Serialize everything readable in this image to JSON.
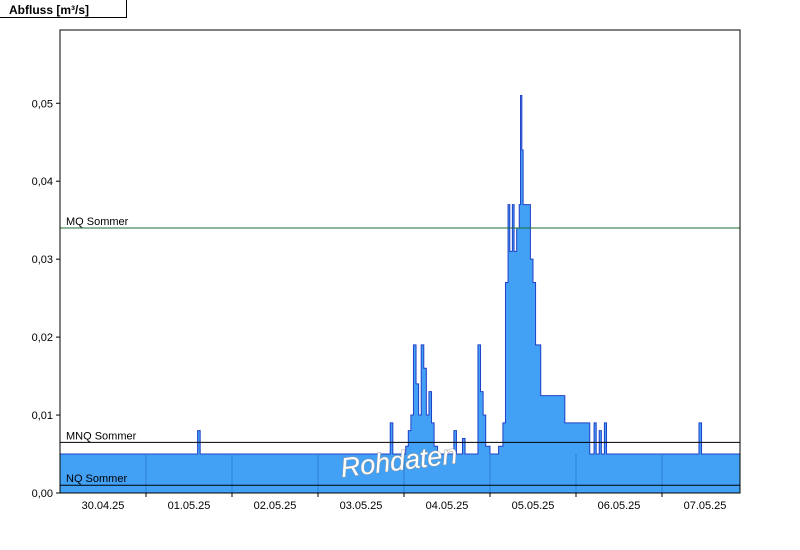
{
  "page": {
    "title": "Abfluss [m³/s]"
  },
  "chart_data": {
    "type": "area",
    "title": "Abfluss [m³/s]",
    "ylabel": "Abfluss [m³/s]",
    "xlabel": "",
    "unit": "m³/s",
    "watermark": "Rohdaten",
    "series_name": "Rohdaten",
    "ylim": [
      0,
      0.0594
    ],
    "xlim_days": [
      0,
      7.907
    ],
    "y_ticks": [
      0,
      0.01,
      0.02,
      0.03,
      0.04,
      0.05
    ],
    "y_tick_labels": [
      "0,00",
      "0,01",
      "0,02",
      "0,03",
      "0,04",
      "0,05"
    ],
    "x_tick_labels": [
      "30.04.25",
      "01.05.25",
      "02.05.25",
      "03.05.25",
      "04.05.25",
      "05.05.25",
      "06.05.25",
      "07.05.25"
    ],
    "x_day_boundaries": [
      1,
      2,
      3,
      4,
      5,
      6,
      7
    ],
    "grid": "day-ticks-only",
    "legend_position": "none",
    "reference_lines": [
      {
        "label": "MQ Sommer",
        "value": 0.034,
        "color": "#1b6e34"
      },
      {
        "label": "MNQ Sommer",
        "value": 0.0065,
        "color": "#000000"
      },
      {
        "label": "NQ Sommer",
        "value": 0.001,
        "color": "#000000"
      }
    ],
    "colors": {
      "area_fill": "#42a0f5",
      "area_stroke": "#2140c8",
      "day_line": "#2f7fd0",
      "axis": "#000000",
      "watermark_fill": "#ffffff",
      "watermark_outline": "#9a9a9a"
    },
    "series": [
      {
        "name": "Rohdaten",
        "step": true,
        "points": [
          [
            0.0,
            0.005
          ],
          [
            1.6,
            0.008
          ],
          [
            1.63,
            0.005
          ],
          [
            3.84,
            0.009
          ],
          [
            3.87,
            0.005
          ],
          [
            4.02,
            0.006
          ],
          [
            4.05,
            0.008
          ],
          [
            4.08,
            0.01
          ],
          [
            4.11,
            0.019
          ],
          [
            4.14,
            0.014
          ],
          [
            4.17,
            0.01
          ],
          [
            4.2,
            0.019
          ],
          [
            4.23,
            0.016
          ],
          [
            4.26,
            0.01
          ],
          [
            4.29,
            0.013
          ],
          [
            4.32,
            0.009
          ],
          [
            4.35,
            0.006
          ],
          [
            4.39,
            0.005
          ],
          [
            4.58,
            0.008
          ],
          [
            4.61,
            0.005
          ],
          [
            4.68,
            0.007
          ],
          [
            4.71,
            0.005
          ],
          [
            4.86,
            0.019
          ],
          [
            4.89,
            0.013
          ],
          [
            4.92,
            0.01
          ],
          [
            4.95,
            0.006
          ],
          [
            5.0,
            0.005
          ],
          [
            5.1,
            0.006
          ],
          [
            5.15,
            0.009
          ],
          [
            5.18,
            0.027
          ],
          [
            5.21,
            0.037
          ],
          [
            5.23,
            0.031
          ],
          [
            5.26,
            0.037
          ],
          [
            5.28,
            0.031
          ],
          [
            5.31,
            0.034
          ],
          [
            5.34,
            0.037
          ],
          [
            5.355,
            0.051
          ],
          [
            5.37,
            0.044
          ],
          [
            5.385,
            0.037
          ],
          [
            5.47,
            0.03
          ],
          [
            5.5,
            0.027
          ],
          [
            5.53,
            0.019
          ],
          [
            5.59,
            0.0125
          ],
          [
            5.87,
            0.009
          ],
          [
            6.16,
            0.005
          ],
          [
            6.21,
            0.009
          ],
          [
            6.235,
            0.005
          ],
          [
            6.27,
            0.008
          ],
          [
            6.295,
            0.005
          ],
          [
            6.33,
            0.009
          ],
          [
            6.355,
            0.005
          ],
          [
            7.43,
            0.009
          ],
          [
            7.46,
            0.005
          ],
          [
            7.907,
            0.005
          ]
        ]
      }
    ]
  }
}
